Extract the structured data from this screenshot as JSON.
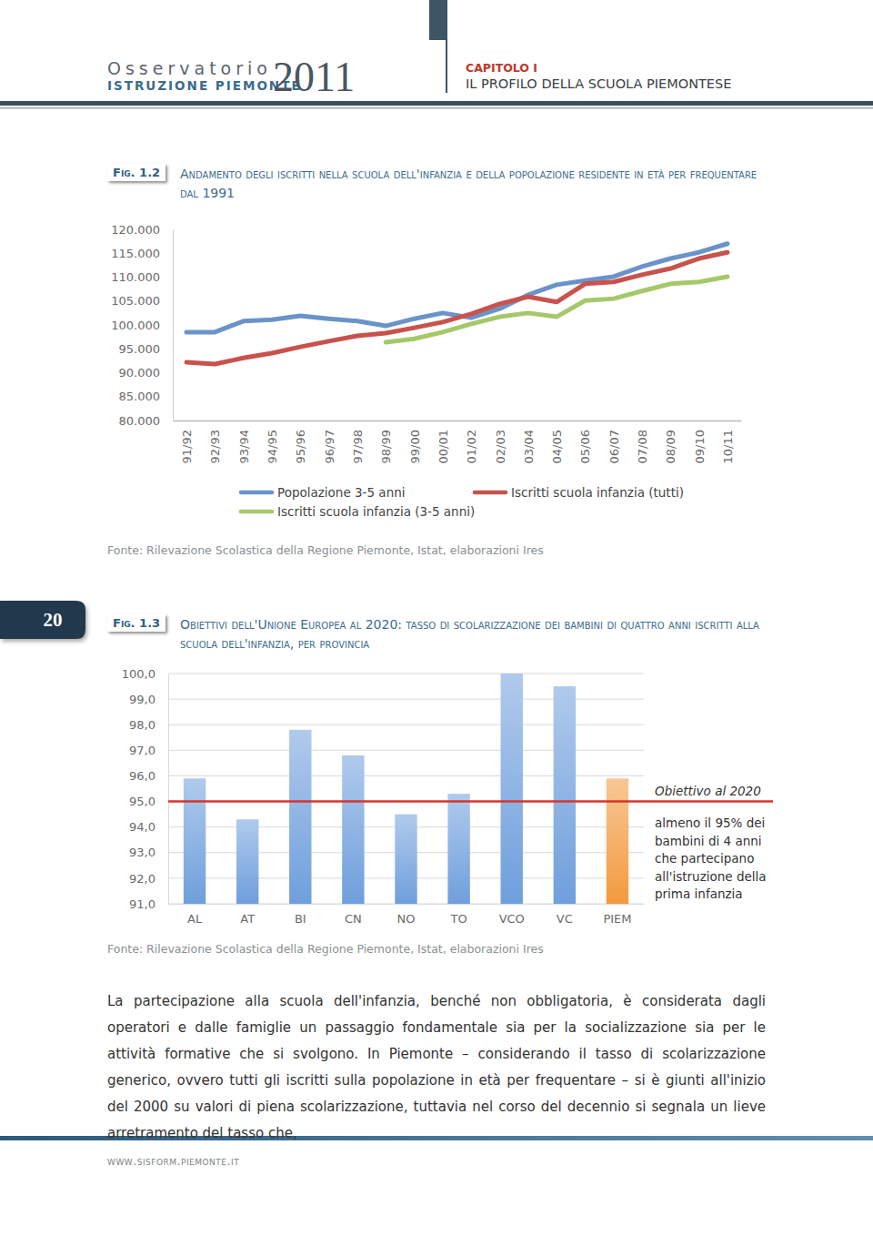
{
  "header": {
    "series_name": "Osservatorio",
    "subtitle": "ISTRUZIONE PIEMONTE",
    "year": "2011",
    "chapter": "CAPITOLO I",
    "chapter_title": "IL PROFILO DELLA SCUOLA PIEMONTESE"
  },
  "page_number": "20",
  "chart_data": [
    {
      "type": "line",
      "figure": "Fig. 1.2",
      "title": "Andamento degli iscritti nella scuola dell'infanzia e della popolazione residente in età per frequentare dal 1991",
      "categories": [
        "91/92",
        "92/93",
        "93/94",
        "94/95",
        "95/96",
        "96/97",
        "97/98",
        "98/99",
        "99/00",
        "00/01",
        "01/02",
        "02/03",
        "03/04",
        "04/05",
        "05/06",
        "06/07",
        "07/08",
        "08/09",
        "09/10",
        "10/11"
      ],
      "series": [
        {
          "name": "Popolazione 3-5 anni",
          "color": "#6a93c9",
          "values": [
            98500,
            98500,
            100800,
            101100,
            101900,
            101300,
            100800,
            99800,
            101300,
            102500,
            101500,
            103400,
            106300,
            108400,
            109300,
            110100,
            112200,
            113900,
            115200,
            117000
          ]
        },
        {
          "name": "Iscritti scuola infanzia (tutti)",
          "color": "#c9524c",
          "values": [
            92200,
            91800,
            93100,
            94100,
            95400,
            96600,
            97700,
            98300,
            99400,
            100600,
            102300,
            104400,
            105900,
            104800,
            108600,
            109000,
            110500,
            111800,
            113900,
            115200
          ]
        },
        {
          "name": "Iscritti scuola infanzia (3-5 anni)",
          "color": "#a5c86a",
          "values": [
            null,
            null,
            null,
            null,
            null,
            null,
            null,
            96400,
            97100,
            98500,
            100200,
            101700,
            102500,
            101700,
            105100,
            105500,
            107100,
            108600,
            109000,
            110100
          ]
        }
      ],
      "ylim": [
        80000,
        120000
      ],
      "yticks": [
        {
          "value": 80000,
          "label": "80.000"
        },
        {
          "value": 85000,
          "label": "85.000"
        },
        {
          "value": 90000,
          "label": "90.000"
        },
        {
          "value": 95000,
          "label": "95.000"
        },
        {
          "value": 100000,
          "label": "100.000"
        },
        {
          "value": 105000,
          "label": "105.000"
        },
        {
          "value": 110000,
          "label": "110.000"
        },
        {
          "value": 115000,
          "label": "115.000"
        },
        {
          "value": 120000,
          "label": "120.000"
        }
      ],
      "grid": false,
      "source": "Fonte: Rilevazione Scolastica della Regione Piemonte, Istat, elaborazioni Ires"
    },
    {
      "type": "bar",
      "figure": "Fig. 1.3",
      "title": "Obiettivi dell'Unione Europea al 2020: tasso di scolarizzazione dei bambini di quattro anni iscritti alla scuola dell'infanzia, per provincia",
      "categories": [
        "AL",
        "AT",
        "BI",
        "CN",
        "NO",
        "TO",
        "VCO",
        "VC",
        "PIEM"
      ],
      "values": [
        95.9,
        94.3,
        97.8,
        96.8,
        94.5,
        95.3,
        100.0,
        99.5,
        95.9
      ],
      "colors": [
        "#6f9fdc",
        "#6f9fdc",
        "#6f9fdc",
        "#6f9fdc",
        "#6f9fdc",
        "#6f9fdc",
        "#6f9fdc",
        "#6f9fdc",
        "#f39a3e"
      ],
      "ylim": [
        91,
        100
      ],
      "yticks": [
        {
          "value": 91,
          "label": "91,0"
        },
        {
          "value": 92,
          "label": "92,0"
        },
        {
          "value": 93,
          "label": "93,0"
        },
        {
          "value": 94,
          "label": "94,0"
        },
        {
          "value": 95,
          "label": "95,0"
        },
        {
          "value": 96,
          "label": "96,0"
        },
        {
          "value": 97,
          "label": "97,0"
        },
        {
          "value": 98,
          "label": "98,0"
        },
        {
          "value": 99,
          "label": "99,0"
        },
        {
          "value": 100,
          "label": "100,0"
        }
      ],
      "grid": true,
      "annotations": [
        {
          "value": 95,
          "color": "#d9342b",
          "title": "Obiettivo al 2020",
          "lines": [
            "almeno il 95% dei",
            "bambini di 4 anni",
            "che partecipano",
            "all'istruzione della",
            "prima infanzia"
          ]
        }
      ],
      "source": "Fonte: Rilevazione Scolastica della Regione Piemonte, Istat, elaborazioni Ires"
    }
  ],
  "body": "La partecipazione alla scuola dell'infanzia, benché non obbligatoria, è considerata dagli operatori e dalle famiglie un passaggio fondamentale sia per la socializzazione sia per le attività formative che si svolgono. In Piemonte – considerando il tasso di scolarizzazione generico, ovvero tutti gli iscritti sulla popolazione in età per frequentare – si è giunti all'inizio del 2000 su valori di piena scolarizzazione, tuttavia nel corso del decennio si segnala un lieve arretramento del tasso che,",
  "footer": "www.sisform.piemonte.it"
}
